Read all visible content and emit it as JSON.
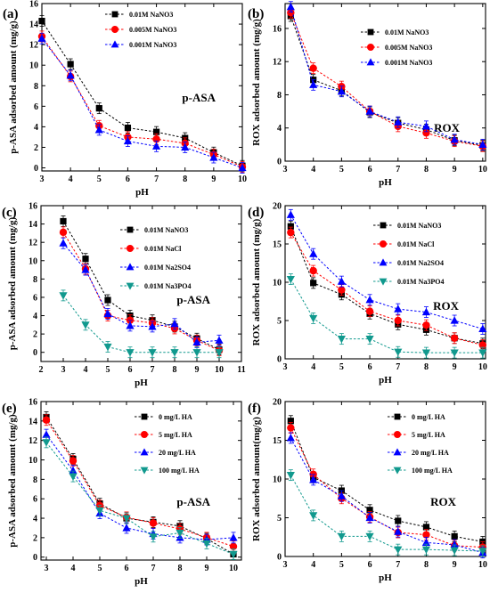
{
  "chart_data": [
    {
      "panel": "(a)",
      "type": "line",
      "annotation": "p-ASA",
      "xlabel": "pH",
      "ylabel": "p-ASA adsorbed amount (mg/g)",
      "xlim": [
        3,
        10
      ],
      "ylim": [
        -0.3,
        16
      ],
      "xticks": [
        "3",
        "4",
        "5",
        "6",
        "7",
        "8",
        "9",
        "10"
      ],
      "yticks": [
        "0",
        "2",
        "4",
        "6",
        "8",
        "10",
        "12",
        "14",
        "16"
      ],
      "legend_position": "top-right",
      "legend_size": "small",
      "x": [
        3,
        4,
        5,
        6,
        7,
        8,
        9,
        10
      ],
      "series": [
        {
          "name": "0.01M NaNO3",
          "color": "#000000",
          "marker": "square",
          "values": [
            14.3,
            10.1,
            5.8,
            3.9,
            3.5,
            2.9,
            1.5,
            0.2
          ]
        },
        {
          "name": "0.005M NaNO3",
          "color": "#ff0000",
          "marker": "circle",
          "values": [
            12.8,
            8.9,
            4.1,
            3.0,
            2.8,
            2.4,
            1.3,
            0.1
          ]
        },
        {
          "name": "0.001M NaNO3",
          "color": "#0000ff",
          "marker": "triangle",
          "values": [
            12.6,
            9.0,
            3.7,
            2.6,
            2.1,
            2.0,
            1.0,
            0.0
          ]
        }
      ]
    },
    {
      "panel": "(b)",
      "type": "line",
      "annotation": "ROX",
      "xlabel": "pH",
      "ylabel": "ROX adsorbed amount (mg/g)",
      "xlim": [
        3,
        10.1
      ],
      "ylim": [
        0,
        19
      ],
      "xticks": [
        "3",
        "4",
        "5",
        "6",
        "7",
        "8",
        "9",
        "10"
      ],
      "yticks": [
        "0",
        "4",
        "8",
        "12",
        "16"
      ],
      "legend_position": "top-right",
      "legend_size": "small",
      "x": [
        3.2,
        4,
        5,
        6,
        7,
        8,
        9,
        10
      ],
      "series": [
        {
          "name": "0.01M NaNO3",
          "color": "#000000",
          "marker": "square",
          "values": [
            17.5,
            9.8,
            8.5,
            5.9,
            4.6,
            3.8,
            2.5,
            1.9
          ]
        },
        {
          "name": "0.005M NaNO3",
          "color": "#ff0000",
          "marker": "circle",
          "values": [
            17.9,
            11.2,
            9.0,
            6.0,
            4.2,
            3.4,
            2.4,
            1.8
          ]
        },
        {
          "name": "0.001M NaNO3",
          "color": "#0000ff",
          "marker": "triangle",
          "values": [
            18.6,
            9.2,
            8.4,
            6.0,
            4.7,
            4.2,
            2.6,
            2.0
          ]
        }
      ]
    },
    {
      "panel": "(c)",
      "type": "line",
      "annotation": "p-ASA",
      "xlabel": "pH",
      "ylabel": "p-ASA adsorbed amount (mg/g)",
      "xlim": [
        2,
        11
      ],
      "ylim": [
        -1,
        16
      ],
      "xticks": [
        "2",
        "3",
        "4",
        "5",
        "6",
        "7",
        "8",
        "9",
        "10",
        "11"
      ],
      "yticks": [
        "0",
        "2",
        "4",
        "6",
        "8",
        "10",
        "12",
        "14",
        "16"
      ],
      "legend_position": "top-right",
      "legend_size": "large",
      "x": [
        3,
        4,
        5,
        6,
        7,
        8,
        9,
        10
      ],
      "series": [
        {
          "name": "0.01M NaNO3",
          "color": "#000000",
          "marker": "square",
          "values": [
            14.3,
            10.2,
            5.7,
            4.0,
            3.5,
            2.8,
            1.5,
            0.3
          ]
        },
        {
          "name": "0.01M NaCl",
          "color": "#ff0000",
          "marker": "circle",
          "values": [
            13.1,
            9.1,
            4.0,
            3.5,
            3.2,
            2.6,
            1.3,
            0.2
          ]
        },
        {
          "name": "0.01M Na2SO4",
          "color": "#0000ff",
          "marker": "triangle",
          "values": [
            11.9,
            9.0,
            4.2,
            2.9,
            2.8,
            3.1,
            1.1,
            1.3
          ]
        },
        {
          "name": "0.01M Na3PO4",
          "color": "#11998e",
          "marker": "inv-triangle",
          "values": [
            6.2,
            3.0,
            0.6,
            0.0,
            0.0,
            0.0,
            0.0,
            0.0
          ]
        }
      ]
    },
    {
      "panel": "(d)",
      "type": "line",
      "annotation": "ROX",
      "xlabel": "pH",
      "ylabel": "ROX adsorbed amount (mg/g)",
      "xlim": [
        3,
        10.1
      ],
      "ylim": [
        0,
        20
      ],
      "xticks": [
        "3",
        "4",
        "5",
        "6",
        "7",
        "8",
        "9",
        "10"
      ],
      "yticks": [
        "0",
        "5",
        "10",
        "15",
        "20"
      ],
      "legend_position": "top-right",
      "legend_size": "large",
      "x": [
        3.2,
        4,
        5,
        6,
        7,
        8,
        9,
        10
      ],
      "series": [
        {
          "name": "0.01M NaNO3",
          "color": "#000000",
          "marker": "square",
          "values": [
            17.3,
            9.9,
            8.4,
            5.9,
            4.5,
            3.8,
            2.7,
            2.0
          ]
        },
        {
          "name": "0.01M NaCl",
          "color": "#ff0000",
          "marker": "circle",
          "values": [
            16.5,
            11.5,
            9.0,
            6.2,
            5.0,
            4.4,
            2.7,
            1.8
          ]
        },
        {
          "name": "0.01M Na2SO4",
          "color": "#0000ff",
          "marker": "triangle",
          "values": [
            18.8,
            13.7,
            10.1,
            7.7,
            6.5,
            6.1,
            5.0,
            3.9
          ]
        },
        {
          "name": "0.01M Na3PO4",
          "color": "#11998e",
          "marker": "inv-triangle",
          "values": [
            10.4,
            5.3,
            2.6,
            2.6,
            0.9,
            0.8,
            0.8,
            0.8
          ]
        }
      ]
    },
    {
      "panel": "(e)",
      "type": "line",
      "annotation": "p-ASA",
      "xlabel": "pH",
      "ylabel": "p-ASA adsorbed amount (mg/g)",
      "xlim": [
        2.8,
        10.3
      ],
      "ylim": [
        -0.3,
        16
      ],
      "xticks": [
        "3",
        "4",
        "5",
        "6",
        "7",
        "8",
        "9",
        "10"
      ],
      "yticks": [
        "0",
        "2",
        "4",
        "6",
        "8",
        "10",
        "12",
        "14",
        "16"
      ],
      "legend_position": "top-right",
      "legend_size": "large",
      "x": [
        3,
        4,
        5,
        6,
        7,
        8,
        9,
        10
      ],
      "series": [
        {
          "name": "0 mg/L HA",
          "color": "#000000",
          "marker": "square",
          "values": [
            14.4,
            10.1,
            5.5,
            4.0,
            3.6,
            3.2,
            1.9,
            0.3
          ]
        },
        {
          "name": "5 mg/L HA",
          "color": "#ff0000",
          "marker": "circle",
          "values": [
            14.1,
            9.9,
            5.3,
            4.1,
            3.5,
            2.9,
            2.0,
            1.1
          ]
        },
        {
          "name": "20 mg/L HA",
          "color": "#0000ff",
          "marker": "triangle",
          "values": [
            12.6,
            8.9,
            4.5,
            3.0,
            2.4,
            2.0,
            1.8,
            2.0
          ]
        },
        {
          "name": "100 mg/L HA",
          "color": "#11998e",
          "marker": "inv-triangle",
          "values": [
            11.8,
            8.3,
            4.8,
            4.0,
            2.1,
            2.5,
            1.4,
            0.3
          ]
        }
      ]
    },
    {
      "panel": "(f)",
      "type": "line",
      "annotation": "ROX",
      "xlabel": "pH",
      "ylabel": "ROX adsorbed amount(mg/g)",
      "xlim": [
        3,
        10.1
      ],
      "ylim": [
        0,
        20
      ],
      "xticks": [
        "3",
        "4",
        "5",
        "6",
        "7",
        "8",
        "9",
        "10"
      ],
      "yticks": [
        "0",
        "5",
        "10",
        "15",
        "20"
      ],
      "legend_position": "top-right",
      "legend_size": "large",
      "x": [
        3.2,
        4,
        5,
        6,
        7,
        8,
        9,
        10
      ],
      "series": [
        {
          "name": "0 mg/L HA",
          "color": "#000000",
          "marker": "square",
          "values": [
            17.5,
            10.2,
            8.5,
            6.0,
            4.6,
            3.8,
            2.6,
            1.9
          ]
        },
        {
          "name": "5 mg/L HA",
          "color": "#ff0000",
          "marker": "circle",
          "values": [
            16.6,
            10.6,
            7.5,
            5.1,
            3.1,
            2.8,
            1.4,
            1.2
          ]
        },
        {
          "name": "20 mg/L HA",
          "color": "#0000ff",
          "marker": "triangle",
          "values": [
            15.3,
            9.9,
            7.8,
            5.0,
            3.2,
            1.8,
            1.5,
            0.5
          ]
        },
        {
          "name": "100 mg/L HA",
          "color": "#11998e",
          "marker": "inv-triangle",
          "values": [
            10.5,
            5.3,
            2.6,
            2.6,
            0.9,
            0.9,
            0.8,
            0.7
          ]
        }
      ]
    }
  ]
}
